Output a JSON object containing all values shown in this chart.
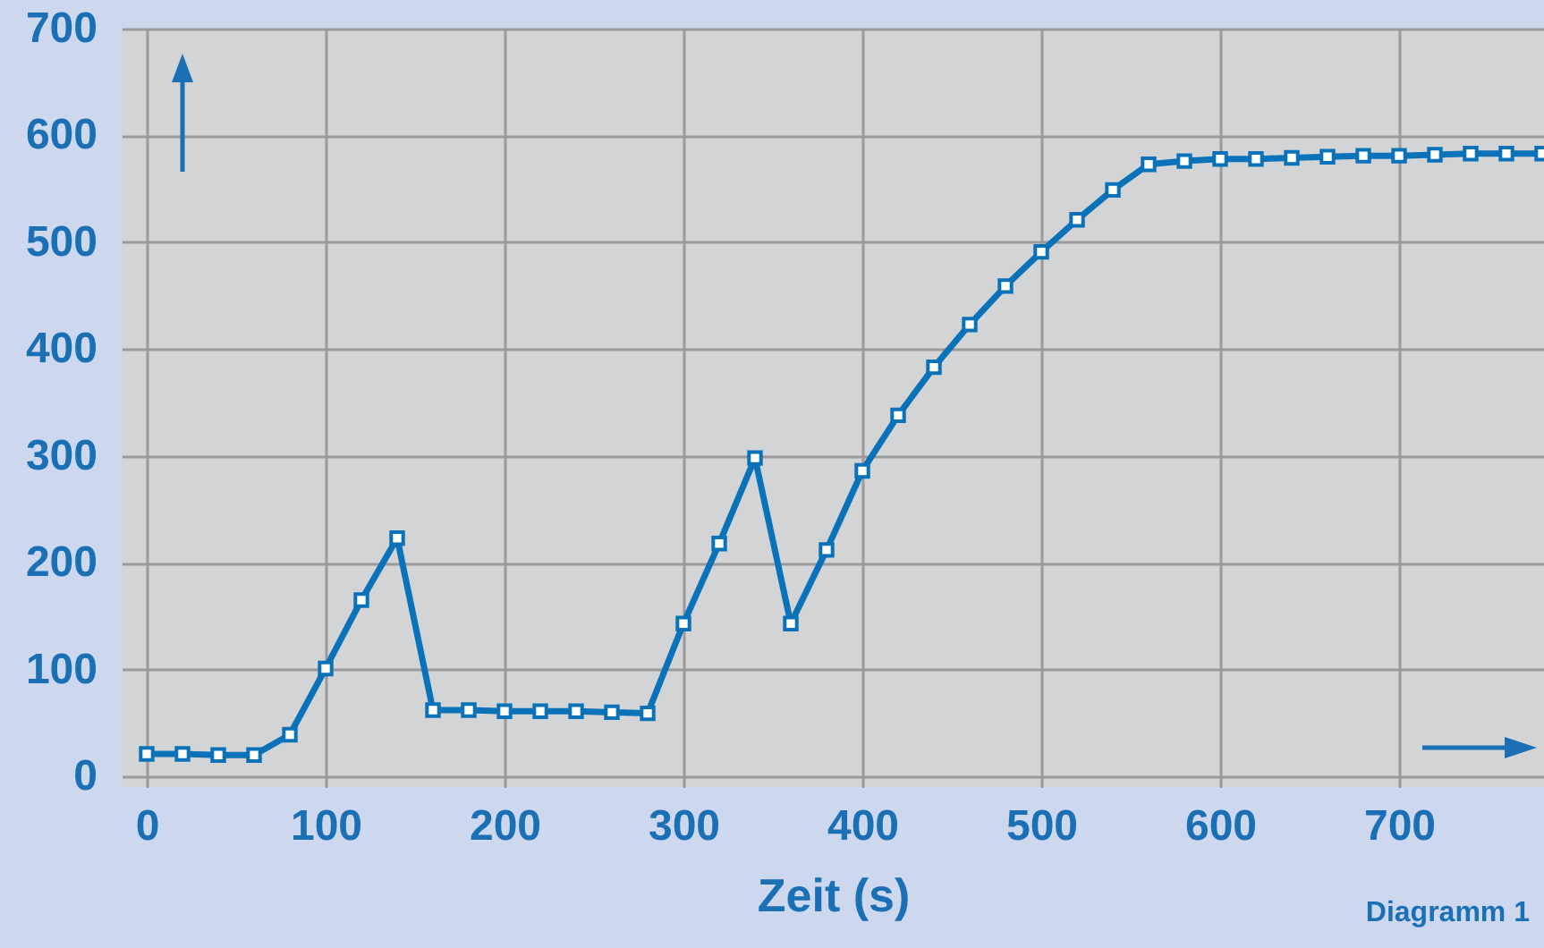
{
  "chart_data": {
    "type": "line",
    "xlabel": "Zeit (s)",
    "annotations": [
      "Diagramm 1"
    ],
    "x": [
      0,
      20,
      40,
      60,
      80,
      100,
      120,
      140,
      160,
      180,
      200,
      220,
      240,
      260,
      280,
      300,
      320,
      340,
      360,
      380,
      400,
      420,
      440,
      460,
      480,
      500,
      520,
      540,
      560,
      580,
      600,
      620,
      640,
      660,
      680,
      700,
      720,
      740,
      760,
      780
    ],
    "series": [
      {
        "color": "#0a72b9",
        "values": [
          21,
          21,
          20,
          20,
          39,
          101,
          165,
          223,
          62,
          62,
          61,
          61,
          61,
          60,
          59,
          143,
          218,
          298,
          143,
          212,
          286,
          338,
          383,
          423,
          459,
          491,
          521,
          549,
          573,
          576,
          578,
          578,
          579,
          580,
          581,
          581,
          582,
          583,
          583,
          583
        ]
      }
    ],
    "xlim": [
      -14,
      781
    ],
    "ylim": [
      -10,
      700
    ],
    "xticks": [
      0,
      100,
      200,
      300,
      400,
      500,
      600,
      700
    ],
    "yticks": [
      0,
      100,
      200,
      300,
      400,
      500,
      600,
      700
    ],
    "grid": true,
    "marker": "square",
    "line_style": "solid",
    "legend": false
  }
}
